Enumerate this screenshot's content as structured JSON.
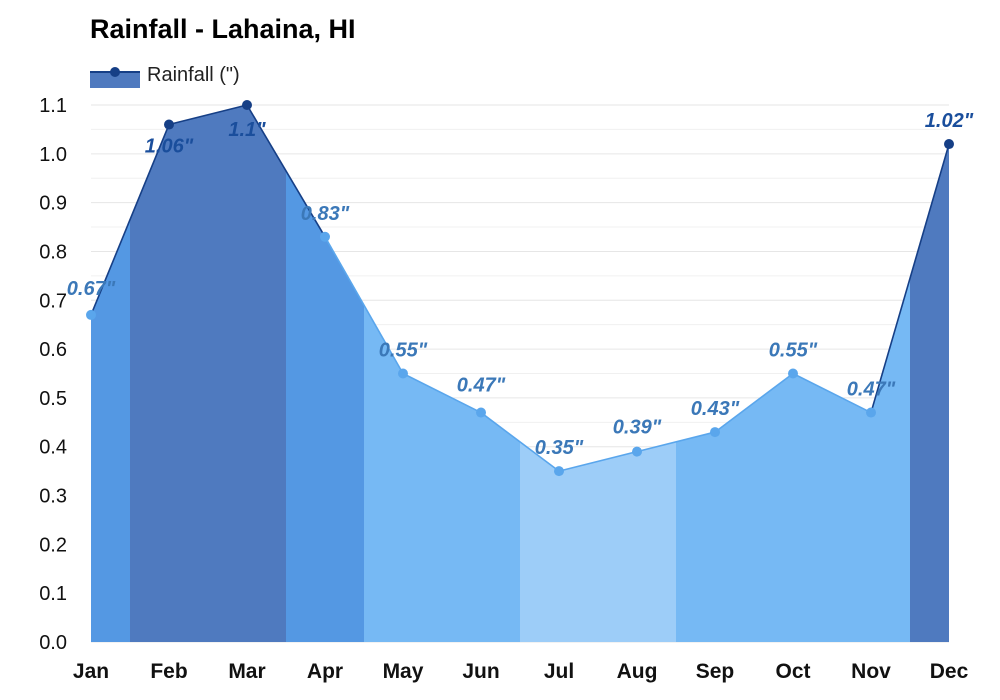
{
  "title": "Rainfall - Lahaina, HI",
  "legend": {
    "label": "Rainfall (\")",
    "color": "#1a4e9c"
  },
  "colors": {
    "wettest_fill": "#4f7abf",
    "wet_fill": "#5498e3",
    "mid_fill": "#76b9f4",
    "dry_fill": "#9dcdf8",
    "wettest_line": "#163f86",
    "light_line": "#5aa6ec",
    "wettest_label": "#1a4e9c",
    "light_label": "#3b78b8",
    "grid": "#e6e6e6"
  },
  "chart_data": {
    "type": "area",
    "title": "Rainfall - Lahaina, HI",
    "xlabel": "",
    "ylabel": "",
    "categories": [
      "Jan",
      "Feb",
      "Mar",
      "Apr",
      "May",
      "Jun",
      "Jul",
      "Aug",
      "Sep",
      "Oct",
      "Nov",
      "Dec"
    ],
    "series": [
      {
        "name": "Rainfall (\")",
        "values": [
          0.67,
          1.06,
          1.1,
          0.83,
          0.55,
          0.47,
          0.35,
          0.39,
          0.43,
          0.55,
          0.47,
          1.02
        ],
        "labels": [
          "0.67\"",
          "1.06\"",
          "1.1\"",
          "0.83\"",
          "0.55\"",
          "0.47\"",
          "0.35\"",
          "0.39\"",
          "0.43\"",
          "0.55\"",
          "0.47\"",
          "1.02\""
        ]
      }
    ],
    "ylim": [
      0,
      1.1
    ],
    "yticks": [
      "0.0",
      "0.1",
      "0.2",
      "0.3",
      "0.4",
      "0.5",
      "0.6",
      "0.7",
      "0.8",
      "0.9",
      "1.0",
      "1.1"
    ],
    "grid": true,
    "legend_position": "top-left"
  }
}
